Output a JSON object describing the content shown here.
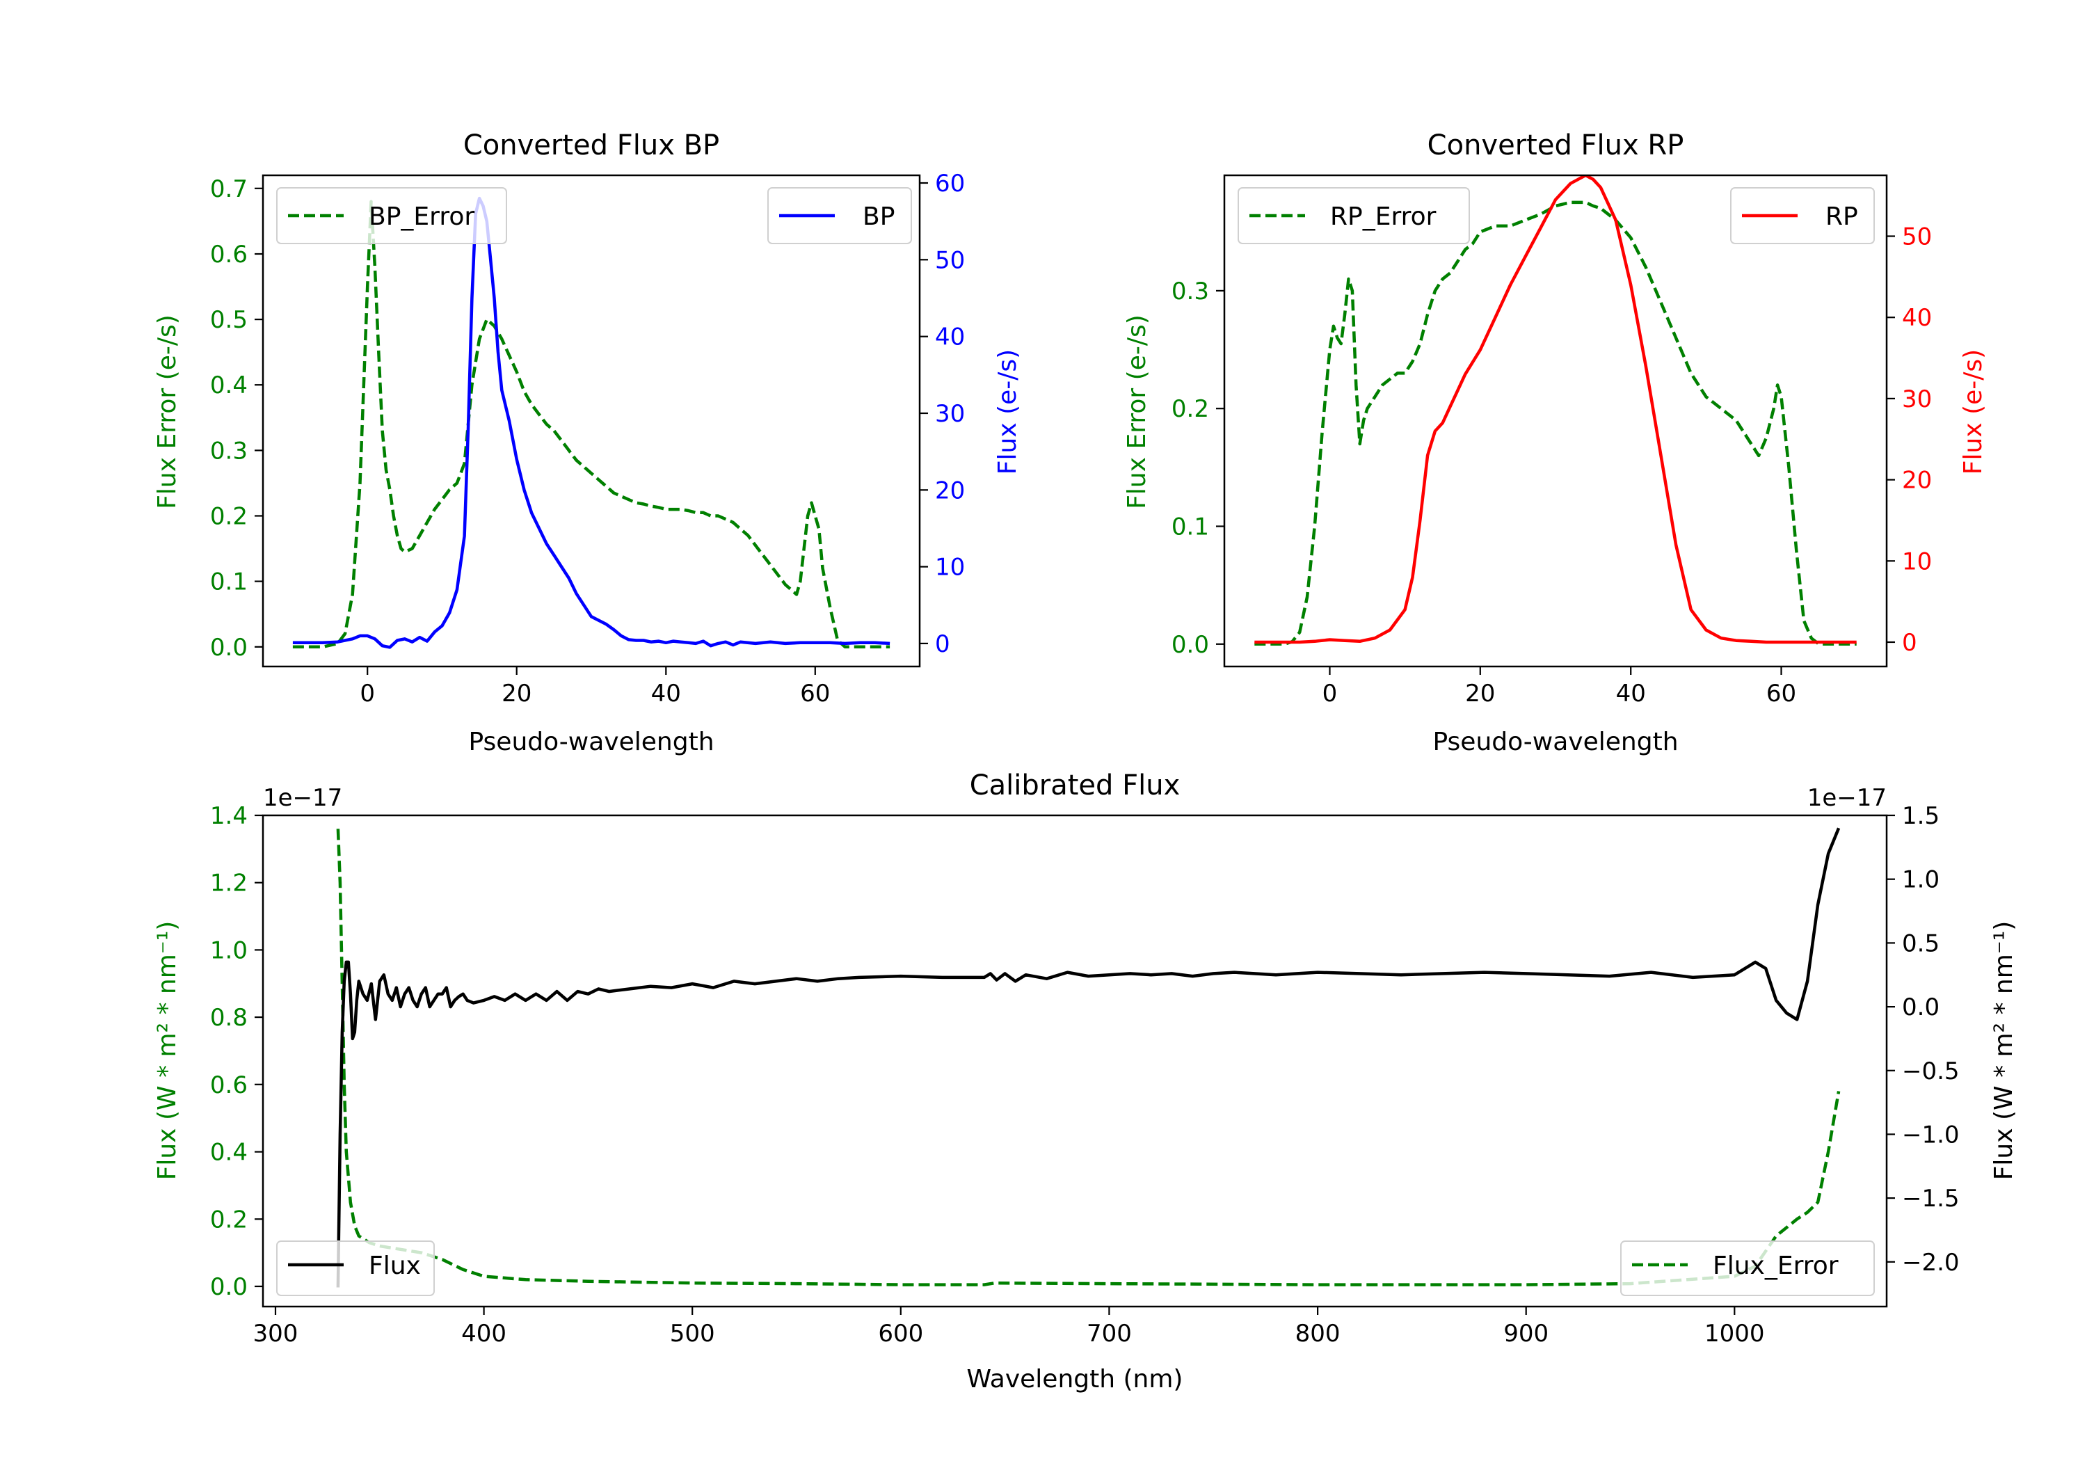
{
  "colors": {
    "green": "#008000",
    "blue": "#0000ff",
    "red": "#ff0000",
    "black": "#000000"
  },
  "chart_data": [
    {
      "type": "line",
      "title": "Converted Flux BP",
      "xlabel": "Pseudo-wavelength",
      "ylabel_left": "Flux Error (e-/s)",
      "ylabel_right": "Flux (e-/s)",
      "xlim": [
        -14,
        74
      ],
      "ylim_left": [
        -0.03,
        0.72
      ],
      "ylim_right": [
        -3,
        61
      ],
      "xticks": [
        "0",
        "20",
        "40",
        "60"
      ],
      "yticks_left": [
        "0.0",
        "0.1",
        "0.2",
        "0.3",
        "0.4",
        "0.5",
        "0.6",
        "0.7"
      ],
      "yticks_right": [
        "0",
        "10",
        "20",
        "30",
        "40",
        "50",
        "60"
      ],
      "legend_left": "BP_Error",
      "legend_right": "BP",
      "series": [
        {
          "name": "BP_Error",
          "axis": "left",
          "style": "dashed",
          "color": "#008000",
          "x": [
            -10,
            -6,
            -4,
            -3,
            -2,
            -1,
            0,
            0.5,
            1,
            1.5,
            2,
            2.5,
            3,
            3.5,
            4,
            4.5,
            5,
            6,
            7,
            8,
            9,
            10,
            11,
            12,
            13,
            14,
            15,
            16,
            17,
            18,
            19,
            20,
            21,
            22,
            23,
            24,
            25,
            26,
            27,
            28,
            29,
            30,
            31,
            32,
            33,
            34,
            35,
            36,
            37,
            38,
            39,
            40,
            41,
            42,
            43,
            44,
            45,
            46,
            47,
            48,
            49,
            50,
            51,
            52,
            53,
            54,
            55,
            56,
            57,
            57.5,
            58,
            58.5,
            59,
            59.5,
            60,
            60.5,
            61,
            62,
            63,
            64,
            65,
            66,
            67,
            68,
            69,
            70
          ],
          "y": [
            0.0,
            0.0,
            0.005,
            0.02,
            0.08,
            0.25,
            0.55,
            0.68,
            0.58,
            0.45,
            0.33,
            0.27,
            0.24,
            0.2,
            0.17,
            0.15,
            0.145,
            0.15,
            0.17,
            0.19,
            0.21,
            0.225,
            0.24,
            0.25,
            0.28,
            0.4,
            0.47,
            0.5,
            0.49,
            0.47,
            0.445,
            0.42,
            0.39,
            0.37,
            0.355,
            0.34,
            0.33,
            0.315,
            0.3,
            0.285,
            0.275,
            0.265,
            0.255,
            0.245,
            0.235,
            0.23,
            0.225,
            0.22,
            0.218,
            0.215,
            0.213,
            0.21,
            0.21,
            0.21,
            0.208,
            0.205,
            0.205,
            0.2,
            0.2,
            0.195,
            0.19,
            0.18,
            0.17,
            0.155,
            0.14,
            0.125,
            0.11,
            0.095,
            0.085,
            0.08,
            0.1,
            0.15,
            0.2,
            0.22,
            0.2,
            0.18,
            0.12,
            0.06,
            0.01,
            0.0,
            0.0,
            0.0,
            0.0,
            0.0,
            0.0,
            0.0
          ]
        },
        {
          "name": "BP",
          "axis": "right",
          "style": "solid",
          "color": "#0000ff",
          "x": [
            -10,
            -6,
            -4,
            -2,
            -1,
            0,
            1,
            2,
            3,
            4,
            5,
            6,
            7,
            8,
            9,
            10,
            11,
            12,
            13,
            13.5,
            14,
            14.5,
            15,
            15.5,
            16,
            16.5,
            17,
            17.5,
            18,
            19,
            20,
            21,
            22,
            23,
            24,
            25,
            26,
            27,
            28,
            29,
            30,
            31,
            32,
            33,
            34,
            35,
            36,
            37,
            38,
            39,
            40,
            41,
            42,
            43,
            44,
            45,
            46,
            47,
            48,
            49,
            50,
            52,
            54,
            56,
            58,
            60,
            62,
            64,
            66,
            68,
            70
          ],
          "y": [
            0.1,
            0.1,
            0.2,
            0.6,
            1.0,
            1.0,
            0.6,
            -0.3,
            -0.5,
            0.4,
            0.6,
            0.2,
            0.8,
            0.3,
            1.5,
            2.3,
            4.0,
            7.0,
            14.0,
            28.0,
            45.0,
            56.0,
            58.0,
            57.0,
            55.0,
            50.0,
            45.0,
            38.0,
            33.0,
            29.0,
            24.0,
            20.0,
            17.0,
            15.0,
            13.0,
            11.5,
            10.0,
            8.5,
            6.5,
            5.0,
            3.5,
            3.0,
            2.5,
            1.8,
            1.0,
            0.5,
            0.4,
            0.4,
            0.2,
            0.3,
            0.1,
            0.3,
            0.2,
            0.1,
            0.0,
            0.3,
            -0.3,
            0.0,
            0.2,
            -0.2,
            0.2,
            0.0,
            0.2,
            0.0,
            0.1,
            0.1,
            0.1,
            0.0,
            0.1,
            0.1,
            0.0
          ]
        }
      ]
    },
    {
      "type": "line",
      "title": "Converted Flux RP",
      "xlabel": "Pseudo-wavelength",
      "ylabel_left": "Flux Error (e-/s)",
      "ylabel_right": "Flux (e-/s)",
      "xlim": [
        -14,
        74
      ],
      "ylim_left": [
        -0.019,
        0.398
      ],
      "ylim_right": [
        -3,
        57.5
      ],
      "xticks": [
        "0",
        "20",
        "40",
        "60"
      ],
      "yticks_left": [
        "0.0",
        "0.1",
        "0.2",
        "0.3"
      ],
      "yticks_right": [
        "0",
        "10",
        "20",
        "30",
        "40",
        "50"
      ],
      "legend_left": "RP_Error",
      "legend_right": "RP",
      "series": [
        {
          "name": "RP_Error",
          "axis": "left",
          "style": "dashed",
          "color": "#008000",
          "x": [
            -10,
            -6,
            -5,
            -4,
            -3,
            -2,
            -1,
            0,
            0.5,
            1,
            1.5,
            2,
            2.5,
            3,
            3.5,
            4,
            4.5,
            5,
            6,
            7,
            8,
            9,
            10,
            11,
            12,
            13,
            14,
            15,
            16,
            17,
            18,
            19,
            20,
            22,
            24,
            26,
            28,
            30,
            32,
            34,
            35,
            36,
            38,
            40,
            42,
            44,
            46,
            48,
            50,
            52,
            54,
            56,
            57,
            58,
            59,
            59.5,
            60,
            61,
            62,
            63,
            64,
            65,
            66,
            68,
            70
          ],
          "y": [
            0.0,
            0.0,
            0.002,
            0.01,
            0.04,
            0.1,
            0.18,
            0.25,
            0.27,
            0.26,
            0.255,
            0.28,
            0.31,
            0.3,
            0.22,
            0.17,
            0.19,
            0.2,
            0.21,
            0.22,
            0.225,
            0.23,
            0.23,
            0.24,
            0.255,
            0.28,
            0.3,
            0.31,
            0.315,
            0.325,
            0.335,
            0.34,
            0.35,
            0.355,
            0.355,
            0.36,
            0.365,
            0.372,
            0.375,
            0.375,
            0.372,
            0.37,
            0.36,
            0.345,
            0.32,
            0.29,
            0.26,
            0.23,
            0.21,
            0.2,
            0.19,
            0.17,
            0.16,
            0.175,
            0.2,
            0.22,
            0.21,
            0.15,
            0.08,
            0.02,
            0.005,
            0.0,
            0.0,
            0.0,
            0.0
          ]
        },
        {
          "name": "RP",
          "axis": "right",
          "style": "solid",
          "color": "#ff0000",
          "x": [
            -10,
            -6,
            -4,
            -2,
            0,
            2,
            4,
            6,
            8,
            10,
            11,
            12,
            13,
            14,
            15,
            16,
            17,
            18,
            20,
            22,
            24,
            26,
            28,
            30,
            32,
            33,
            34,
            35,
            36,
            38,
            40,
            42,
            44,
            46,
            48,
            50,
            52,
            54,
            56,
            58,
            60,
            62,
            64,
            66,
            68,
            70
          ],
          "y": [
            0.0,
            0.0,
            0.0,
            0.1,
            0.3,
            0.2,
            0.1,
            0.5,
            1.5,
            4.0,
            8.0,
            15.0,
            23.0,
            26.0,
            27.0,
            29.0,
            31.0,
            33.0,
            36.0,
            40.0,
            44.0,
            47.5,
            51.0,
            54.5,
            56.5,
            57.0,
            57.5,
            57.0,
            56.0,
            52.0,
            44.0,
            34.0,
            23.0,
            12.0,
            4.0,
            1.5,
            0.5,
            0.2,
            0.1,
            0.0,
            0.0,
            0.0,
            0.0,
            0.0,
            0.0,
            0.0
          ]
        }
      ]
    },
    {
      "type": "line",
      "title": "Calibrated Flux",
      "xlabel": "Wavelength (nm)",
      "ylabel_left": "Flux (W * m² * nm⁻¹)",
      "ylabel_right": "Flux (W * m² * nm⁻¹)",
      "offset_text_left": "1e−17",
      "offset_text_right": "1e−17",
      "xlim": [
        294,
        1073
      ],
      "ylim_left": [
        -0.06,
        1.4
      ],
      "ylim_right": [
        -2.35,
        1.5
      ],
      "xticks": [
        "300",
        "400",
        "500",
        "600",
        "700",
        "800",
        "900",
        "1000"
      ],
      "yticks_left": [
        "0.0",
        "0.2",
        "0.4",
        "0.6",
        "0.8",
        "1.0",
        "1.2",
        "1.4"
      ],
      "yticks_right": [
        "−2.0",
        "−1.5",
        "−1.0",
        "−0.5",
        "0.0",
        "0.5",
        "1.0",
        "1.5"
      ],
      "legend_left": "Flux",
      "legend_right": "Flux_Error",
      "series": [
        {
          "name": "Flux_Error",
          "axis": "left",
          "style": "dashed",
          "color": "#008000",
          "x": [
            330,
            331,
            332,
            333,
            334,
            336,
            338,
            340,
            345,
            350,
            360,
            370,
            380,
            390,
            400,
            420,
            450,
            500,
            550,
            600,
            640,
            645,
            700,
            800,
            900,
            950,
            1000,
            1010,
            1020,
            1030,
            1035,
            1040,
            1045,
            1050
          ],
          "y": [
            1.36,
            1.2,
            0.9,
            0.6,
            0.4,
            0.25,
            0.18,
            0.15,
            0.13,
            0.12,
            0.11,
            0.1,
            0.08,
            0.05,
            0.03,
            0.02,
            0.015,
            0.01,
            0.008,
            0.005,
            0.005,
            0.01,
            0.008,
            0.005,
            0.005,
            0.008,
            0.03,
            0.06,
            0.15,
            0.2,
            0.22,
            0.25,
            0.4,
            0.58
          ]
        },
        {
          "name": "Flux",
          "axis": "right",
          "style": "solid",
          "color": "#000000",
          "x": [
            330,
            331,
            332,
            333,
            334,
            335,
            336,
            337,
            338,
            339,
            340,
            342,
            344,
            346,
            348,
            350,
            352,
            354,
            356,
            358,
            360,
            362,
            364,
            366,
            368,
            370,
            372,
            374,
            376,
            378,
            380,
            382,
            384,
            386,
            388,
            390,
            392,
            395,
            400,
            405,
            410,
            415,
            420,
            425,
            430,
            435,
            440,
            445,
            450,
            455,
            460,
            470,
            480,
            490,
            500,
            510,
            520,
            530,
            540,
            550,
            560,
            570,
            580,
            600,
            620,
            640,
            643,
            646,
            650,
            655,
            660,
            670,
            680,
            690,
            700,
            710,
            720,
            730,
            740,
            750,
            760,
            780,
            800,
            820,
            840,
            860,
            880,
            900,
            920,
            940,
            960,
            980,
            1000,
            1005,
            1010,
            1015,
            1020,
            1025,
            1030,
            1035,
            1040,
            1045,
            1050
          ],
          "y": [
            -2.2,
            -1.0,
            -0.2,
            0.2,
            0.35,
            0.35,
            0.1,
            -0.25,
            -0.2,
            0.05,
            0.2,
            0.1,
            0.05,
            0.18,
            -0.1,
            0.2,
            0.25,
            0.1,
            0.05,
            0.15,
            0.0,
            0.1,
            0.15,
            0.05,
            0.0,
            0.1,
            0.15,
            0.0,
            0.05,
            0.1,
            0.1,
            0.15,
            0.0,
            0.05,
            0.08,
            0.1,
            0.05,
            0.03,
            0.05,
            0.08,
            0.05,
            0.1,
            0.05,
            0.1,
            0.05,
            0.12,
            0.05,
            0.12,
            0.1,
            0.14,
            0.12,
            0.14,
            0.16,
            0.15,
            0.18,
            0.15,
            0.2,
            0.18,
            0.2,
            0.22,
            0.2,
            0.22,
            0.23,
            0.24,
            0.23,
            0.23,
            0.26,
            0.21,
            0.26,
            0.2,
            0.25,
            0.22,
            0.27,
            0.24,
            0.25,
            0.26,
            0.25,
            0.26,
            0.24,
            0.26,
            0.27,
            0.25,
            0.27,
            0.26,
            0.25,
            0.26,
            0.27,
            0.26,
            0.25,
            0.24,
            0.27,
            0.23,
            0.25,
            0.3,
            0.35,
            0.3,
            0.05,
            -0.05,
            -0.1,
            0.2,
            0.8,
            1.2,
            1.4
          ]
        }
      ]
    }
  ]
}
